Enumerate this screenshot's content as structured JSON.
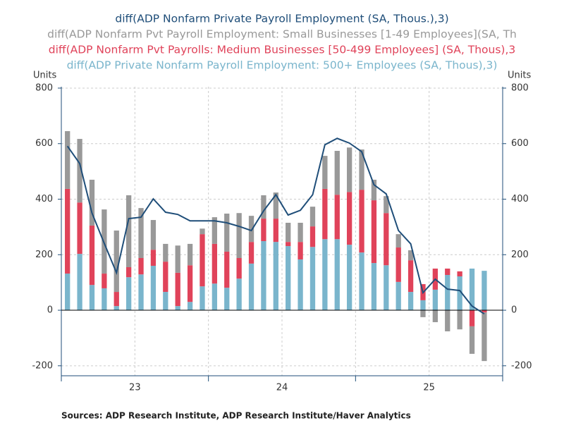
{
  "chart_data": {
    "type": "stacked-bar-line",
    "series": [
      {
        "name": "diff(ADP Private Nonfarm Payroll Employment: 500+ Employees (SA, Thous),3)",
        "kind": "bar",
        "color": "#7ab5cc",
        "values": [
          132,
          203,
          91,
          79,
          15,
          119,
          129,
          160,
          66,
          15,
          30,
          86,
          96,
          81,
          114,
          168,
          249,
          246,
          231,
          183,
          228,
          256,
          256,
          236,
          208,
          170,
          162,
          102,
          66,
          36,
          74,
          127,
          122,
          150,
          142
        ]
      },
      {
        "name": "diff(ADP Nonfarm Pvt Payrolls: Medium Businesses [50-499 Employees] (SA, Thous),3",
        "kind": "bar",
        "color": "#e0435a",
        "values": [
          305,
          185,
          214,
          53,
          51,
          36,
          59,
          58,
          109,
          120,
          132,
          188,
          143,
          130,
          74,
          78,
          81,
          84,
          15,
          63,
          74,
          181,
          160,
          190,
          226,
          226,
          188,
          124,
          114,
          58,
          76,
          23,
          18,
          -58,
          -8
        ]
      },
      {
        "name": "diff(ADP Nonfarm Pvt Payroll Employment: Small Businesses [1-49 Employees](SA, Th",
        "kind": "bar",
        "color": "#999999",
        "values": [
          208,
          229,
          165,
          231,
          221,
          259,
          180,
          107,
          64,
          98,
          77,
          20,
          96,
          137,
          162,
          94,
          84,
          94,
          69,
          69,
          71,
          119,
          158,
          160,
          145,
          74,
          61,
          48,
          36,
          -25,
          -43,
          -76,
          -69,
          -99,
          -175
        ]
      },
      {
        "name": "diff(ADP Nonfarm Private Payroll Employment (SA, Thous.),3)",
        "kind": "line",
        "color": "#1f4e79",
        "values": [
          591,
          528,
          350,
          241,
          135,
          330,
          335,
          401,
          353,
          345,
          322,
          322,
          322,
          315,
          302,
          287,
          358,
          416,
          343,
          360,
          416,
          596,
          619,
          602,
          571,
          452,
          419,
          287,
          239,
          63,
          112,
          76,
          71,
          15,
          -13
        ]
      }
    ],
    "ylabel": "Units",
    "y2label": "Units",
    "ylim": [
      -236,
      805
    ],
    "yticks": [
      -200,
      0,
      200,
      400,
      600,
      800
    ],
    "y2lim": [
      -236,
      805
    ],
    "y2ticks": [
      -200,
      0,
      200,
      400,
      600,
      800
    ],
    "xlim": [
      0,
      36
    ],
    "xticks": [
      0,
      12,
      24,
      36
    ],
    "xlabels": [
      {
        "value": 6,
        "label": "23"
      },
      {
        "value": 18,
        "label": "24"
      },
      {
        "value": 30,
        "label": "25"
      }
    ],
    "grid": true,
    "source": "Sources:  ADP Research Institute, ADP Research Institute/Haver Analytics"
  }
}
